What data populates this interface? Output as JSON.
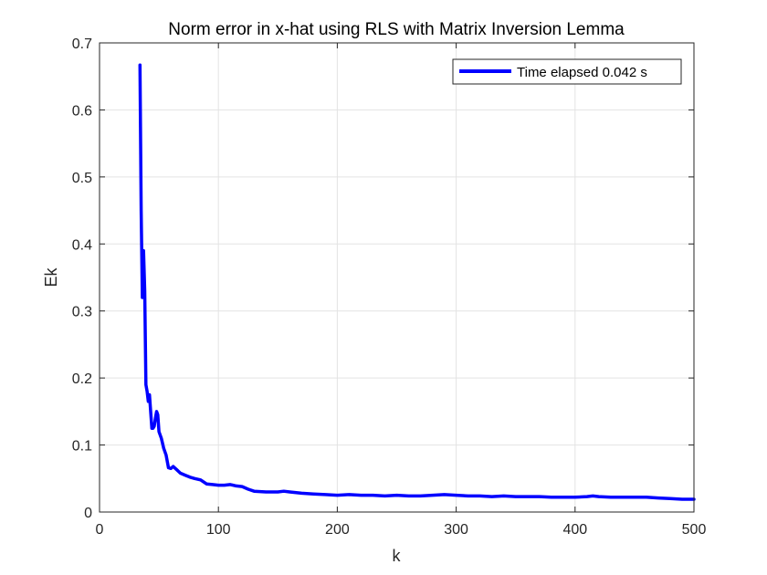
{
  "chart_data": {
    "type": "line",
    "title": "Norm error in x-hat using RLS with Matrix Inversion Lemma",
    "xlabel": "k",
    "ylabel": "Ek",
    "xlim": [
      0,
      500
    ],
    "ylim": [
      0,
      0.7
    ],
    "xticks": [
      0,
      100,
      200,
      300,
      400,
      500
    ],
    "yticks": [
      0,
      0.1,
      0.2,
      0.3,
      0.4,
      0.5,
      0.6,
      0.7
    ],
    "xtick_labels": [
      "0",
      "100",
      "200",
      "300",
      "400",
      "500"
    ],
    "ytick_labels": [
      "0",
      "0.1",
      "0.2",
      "0.3",
      "0.4",
      "0.5",
      "0.6",
      "0.7"
    ],
    "grid": true,
    "legend_position": "top-right",
    "series": [
      {
        "name": "Time elapsed 0.042 s",
        "color": "#0000ff",
        "x": [
          34,
          35,
          36,
          37,
          38,
          39,
          40,
          41,
          42,
          43,
          44,
          45,
          46,
          47,
          48,
          49,
          50,
          52,
          54,
          56,
          58,
          60,
          62,
          65,
          68,
          72,
          76,
          80,
          85,
          90,
          95,
          100,
          105,
          110,
          115,
          120,
          125,
          130,
          140,
          150,
          155,
          160,
          170,
          180,
          190,
          200,
          210,
          220,
          230,
          240,
          250,
          260,
          270,
          280,
          290,
          300,
          310,
          320,
          330,
          340,
          350,
          360,
          370,
          380,
          390,
          400,
          410,
          415,
          420,
          430,
          440,
          450,
          460,
          470,
          480,
          490,
          500
        ],
        "y": [
          0.667,
          0.45,
          0.32,
          0.39,
          0.33,
          0.19,
          0.18,
          0.165,
          0.175,
          0.15,
          0.125,
          0.125,
          0.128,
          0.14,
          0.15,
          0.145,
          0.12,
          0.11,
          0.095,
          0.085,
          0.066,
          0.065,
          0.068,
          0.063,
          0.058,
          0.055,
          0.052,
          0.05,
          0.048,
          0.042,
          0.041,
          0.04,
          0.04,
          0.041,
          0.039,
          0.038,
          0.034,
          0.031,
          0.03,
          0.03,
          0.031,
          0.03,
          0.028,
          0.027,
          0.026,
          0.025,
          0.026,
          0.025,
          0.025,
          0.024,
          0.025,
          0.024,
          0.024,
          0.025,
          0.026,
          0.025,
          0.024,
          0.024,
          0.023,
          0.024,
          0.023,
          0.023,
          0.023,
          0.022,
          0.022,
          0.022,
          0.023,
          0.024,
          0.023,
          0.022,
          0.022,
          0.022,
          0.022,
          0.021,
          0.02,
          0.019,
          0.019
        ]
      }
    ]
  }
}
